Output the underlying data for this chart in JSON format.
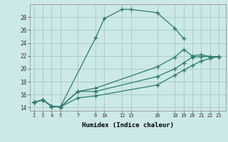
{
  "xlabel": "Humidex (Indice chaleur)",
  "ylabel": "",
  "background_color": "#cce8e8",
  "line_color": "#2d7a6e",
  "grid_color": "#aacccc",
  "xlim": [
    1.5,
    23.8
  ],
  "ylim": [
    13.5,
    30.0
  ],
  "yticks": [
    14,
    16,
    18,
    20,
    22,
    24,
    26,
    28
  ],
  "xticks": [
    2,
    3,
    4,
    5,
    7,
    9,
    10,
    12,
    13,
    16,
    18,
    19,
    20,
    21,
    22,
    23
  ],
  "lines": [
    {
      "x": [
        2,
        3,
        4,
        5,
        9,
        10,
        12,
        13,
        16,
        18,
        19
      ],
      "y": [
        14.8,
        15.2,
        14.2,
        14.1,
        24.8,
        27.8,
        29.2,
        29.2,
        28.7,
        26.3,
        24.7
      ]
    },
    {
      "x": [
        2,
        3,
        4,
        5,
        7,
        9,
        16,
        18,
        19,
        20,
        21,
        22,
        23
      ],
      "y": [
        14.8,
        15.2,
        14.2,
        14.1,
        16.5,
        17.0,
        20.3,
        21.8,
        23.0,
        22.0,
        22.2,
        21.9,
        21.9
      ]
    },
    {
      "x": [
        2,
        3,
        4,
        5,
        7,
        9,
        16,
        18,
        19,
        20,
        21,
        22,
        23
      ],
      "y": [
        14.8,
        15.2,
        14.2,
        14.1,
        16.5,
        16.5,
        18.8,
        20.0,
        20.9,
        21.8,
        21.9,
        21.9,
        21.9
      ]
    },
    {
      "x": [
        2,
        3,
        4,
        5,
        7,
        9,
        16,
        18,
        19,
        20,
        21,
        22,
        23
      ],
      "y": [
        14.8,
        15.2,
        14.2,
        14.1,
        15.5,
        15.8,
        17.5,
        19.0,
        19.8,
        20.5,
        21.2,
        21.6,
        21.9
      ]
    }
  ]
}
